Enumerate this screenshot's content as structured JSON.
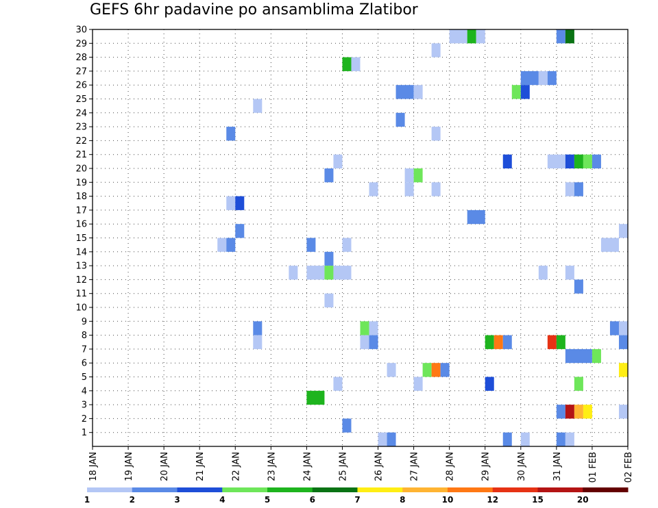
{
  "chart_data": {
    "type": "heatmap",
    "title": "GEFS 6hr padavine po ansamblima Zlatibor",
    "y_ticks": [
      "1",
      "2",
      "3",
      "4",
      "5",
      "6",
      "7",
      "8",
      "9",
      "10",
      "11",
      "12",
      "13",
      "14",
      "15",
      "16",
      "17",
      "18",
      "19",
      "20",
      "21",
      "22",
      "23",
      "24",
      "25",
      "26",
      "27",
      "28",
      "29",
      "30"
    ],
    "x_ticks": [
      "18 JAN",
      "19 JAN",
      "20 JAN",
      "21 JAN",
      "22 JAN",
      "23 JAN",
      "24 JAN",
      "25 JAN",
      "26 JAN",
      "27 JAN",
      "28 JAN",
      "29 JAN",
      "30 JAN",
      "31 JAN",
      "01 FEB",
      "02 FEB"
    ],
    "x_range": [
      "18 JAN 00Z",
      "02 FEB 00Z"
    ],
    "time_step_hours": 6,
    "y_range": [
      0,
      30
    ],
    "grid": "dotted",
    "legend": {
      "placement": "bottom",
      "labels": [
        "1",
        "2",
        "3",
        "4",
        "5",
        "6",
        "7",
        "8",
        "10",
        "12",
        "15",
        "20"
      ],
      "colors": [
        "#b4c7f5",
        "#5a8ae6",
        "#1e4ed8",
        "#6ee65a",
        "#1eb41e",
        "#0a7314",
        "#ffee14",
        "#ffb432",
        "#ff7814",
        "#e63214",
        "#b41414",
        "#640000"
      ]
    },
    "cells": [
      {
        "member": 30,
        "start": "28 JAN 00Z",
        "end": "28 JAN 12Z",
        "value": 1
      },
      {
        "member": 30,
        "start": "28 JAN 12Z",
        "end": "28 JAN 18Z",
        "value": 5
      },
      {
        "member": 30,
        "start": "28 JAN 18Z",
        "end": "29 JAN 00Z",
        "value": 1
      },
      {
        "member": 30,
        "start": "31 JAN 00Z",
        "end": "31 JAN 06Z",
        "value": 2
      },
      {
        "member": 30,
        "start": "31 JAN 06Z",
        "end": "31 JAN 12Z",
        "value": 6
      },
      {
        "member": 29,
        "start": "27 JAN 12Z",
        "end": "27 JAN 18Z",
        "value": 1
      },
      {
        "member": 28,
        "start": "25 JAN 00Z",
        "end": "25 JAN 06Z",
        "value": 5
      },
      {
        "member": 28,
        "start": "25 JAN 06Z",
        "end": "25 JAN 12Z",
        "value": 1
      },
      {
        "member": 27,
        "start": "30 JAN 00Z",
        "end": "30 JAN 12Z",
        "value": 2
      },
      {
        "member": 27,
        "start": "30 JAN 12Z",
        "end": "30 JAN 18Z",
        "value": 1
      },
      {
        "member": 27,
        "start": "30 JAN 18Z",
        "end": "31 JAN 00Z",
        "value": 2
      },
      {
        "member": 26,
        "start": "26 JAN 12Z",
        "end": "27 JAN 00Z",
        "value": 2
      },
      {
        "member": 26,
        "start": "27 JAN 00Z",
        "end": "27 JAN 06Z",
        "value": 1
      },
      {
        "member": 26,
        "start": "29 JAN 18Z",
        "end": "30 JAN 00Z",
        "value": 4
      },
      {
        "member": 26,
        "start": "30 JAN 00Z",
        "end": "30 JAN 06Z",
        "value": 3
      },
      {
        "member": 25,
        "start": "22 JAN 12Z",
        "end": "22 JAN 18Z",
        "value": 1
      },
      {
        "member": 24,
        "start": "26 JAN 12Z",
        "end": "26 JAN 18Z",
        "value": 2
      },
      {
        "member": 23,
        "start": "21 JAN 18Z",
        "end": "22 JAN 00Z",
        "value": 2
      },
      {
        "member": 23,
        "start": "27 JAN 12Z",
        "end": "27 JAN 18Z",
        "value": 1
      },
      {
        "member": 21,
        "start": "24 JAN 18Z",
        "end": "25 JAN 00Z",
        "value": 1
      },
      {
        "member": 21,
        "start": "29 JAN 12Z",
        "end": "29 JAN 18Z",
        "value": 3
      },
      {
        "member": 21,
        "start": "30 JAN 18Z",
        "end": "31 JAN 06Z",
        "value": 1
      },
      {
        "member": 21,
        "start": "31 JAN 06Z",
        "end": "31 JAN 12Z",
        "value": 3
      },
      {
        "member": 21,
        "start": "31 JAN 12Z",
        "end": "31 JAN 18Z",
        "value": 5
      },
      {
        "member": 21,
        "start": "31 JAN 18Z",
        "end": "01 FEB 00Z",
        "value": 4
      },
      {
        "member": 21,
        "start": "01 FEB 00Z",
        "end": "01 FEB 06Z",
        "value": 2
      },
      {
        "member": 20,
        "start": "24 JAN 12Z",
        "end": "24 JAN 18Z",
        "value": 2
      },
      {
        "member": 20,
        "start": "26 JAN 18Z",
        "end": "27 JAN 00Z",
        "value": 1
      },
      {
        "member": 20,
        "start": "27 JAN 00Z",
        "end": "27 JAN 06Z",
        "value": 4
      },
      {
        "member": 19,
        "start": "25 JAN 18Z",
        "end": "26 JAN 00Z",
        "value": 1
      },
      {
        "member": 19,
        "start": "26 JAN 18Z",
        "end": "27 JAN 00Z",
        "value": 1
      },
      {
        "member": 19,
        "start": "27 JAN 12Z",
        "end": "27 JAN 18Z",
        "value": 1
      },
      {
        "member": 19,
        "start": "31 JAN 06Z",
        "end": "31 JAN 12Z",
        "value": 1
      },
      {
        "member": 19,
        "start": "31 JAN 12Z",
        "end": "31 JAN 18Z",
        "value": 2
      },
      {
        "member": 18,
        "start": "21 JAN 18Z",
        "end": "22 JAN 00Z",
        "value": 1
      },
      {
        "member": 18,
        "start": "22 JAN 00Z",
        "end": "22 JAN 06Z",
        "value": 3
      },
      {
        "member": 17,
        "start": "28 JAN 12Z",
        "end": "29 JAN 00Z",
        "value": 2
      },
      {
        "member": 16,
        "start": "01 FEB 18Z",
        "end": "02 FEB 00Z",
        "value": 1
      },
      {
        "member": 16,
        "start": "22 JAN 00Z",
        "end": "22 JAN 06Z",
        "value": 2
      },
      {
        "member": 15,
        "start": "21 JAN 12Z",
        "end": "21 JAN 18Z",
        "value": 1
      },
      {
        "member": 15,
        "start": "21 JAN 18Z",
        "end": "22 JAN 00Z",
        "value": 2
      },
      {
        "member": 15,
        "start": "24 JAN 00Z",
        "end": "24 JAN 06Z",
        "value": 2
      },
      {
        "member": 15,
        "start": "25 JAN 00Z",
        "end": "25 JAN 06Z",
        "value": 1
      },
      {
        "member": 15,
        "start": "01 FEB 06Z",
        "end": "01 FEB 18Z",
        "value": 1
      },
      {
        "member": 14,
        "start": "24 JAN 12Z",
        "end": "24 JAN 18Z",
        "value": 2
      },
      {
        "member": 13,
        "start": "23 JAN 12Z",
        "end": "23 JAN 18Z",
        "value": 1
      },
      {
        "member": 13,
        "start": "24 JAN 00Z",
        "end": "24 JAN 12Z",
        "value": 1
      },
      {
        "member": 13,
        "start": "24 JAN 12Z",
        "end": "24 JAN 18Z",
        "value": 4
      },
      {
        "member": 13,
        "start": "24 JAN 18Z",
        "end": "25 JAN 06Z",
        "value": 1
      },
      {
        "member": 13,
        "start": "30 JAN 12Z",
        "end": "30 JAN 18Z",
        "value": 1
      },
      {
        "member": 13,
        "start": "31 JAN 06Z",
        "end": "31 JAN 12Z",
        "value": 1
      },
      {
        "member": 12,
        "start": "31 JAN 12Z",
        "end": "31 JAN 18Z",
        "value": 2
      },
      {
        "member": 11,
        "start": "24 JAN 12Z",
        "end": "24 JAN 18Z",
        "value": 1
      },
      {
        "member": 9,
        "start": "22 JAN 12Z",
        "end": "22 JAN 18Z",
        "value": 2
      },
      {
        "member": 9,
        "start": "25 JAN 12Z",
        "end": "25 JAN 18Z",
        "value": 4
      },
      {
        "member": 9,
        "start": "25 JAN 18Z",
        "end": "26 JAN 00Z",
        "value": 1
      },
      {
        "member": 9,
        "start": "01 FEB 12Z",
        "end": "01 FEB 18Z",
        "value": 2
      },
      {
        "member": 9,
        "start": "01 FEB 18Z",
        "end": "02 FEB 00Z",
        "value": 1
      },
      {
        "member": 8,
        "start": "22 JAN 12Z",
        "end": "22 JAN 18Z",
        "value": 1
      },
      {
        "member": 8,
        "start": "25 JAN 12Z",
        "end": "25 JAN 18Z",
        "value": 1
      },
      {
        "member": 8,
        "start": "25 JAN 18Z",
        "end": "26 JAN 00Z",
        "value": 2
      },
      {
        "member": 8,
        "start": "29 JAN 00Z",
        "end": "29 JAN 06Z",
        "value": 5
      },
      {
        "member": 8,
        "start": "29 JAN 06Z",
        "end": "29 JAN 12Z",
        "value": 10
      },
      {
        "member": 8,
        "start": "29 JAN 12Z",
        "end": "29 JAN 18Z",
        "value": 2
      },
      {
        "member": 8,
        "start": "30 JAN 18Z",
        "end": "31 JAN 00Z",
        "value": 12
      },
      {
        "member": 8,
        "start": "31 JAN 00Z",
        "end": "31 JAN 06Z",
        "value": 5
      },
      {
        "member": 8,
        "start": "01 FEB 18Z",
        "end": "02 FEB 00Z",
        "value": 2
      },
      {
        "member": 7,
        "start": "31 JAN 06Z",
        "end": "01 FEB 00Z",
        "value": 2
      },
      {
        "member": 7,
        "start": "01 FEB 00Z",
        "end": "01 FEB 06Z",
        "value": 4
      },
      {
        "member": 6,
        "start": "26 JAN 06Z",
        "end": "26 JAN 12Z",
        "value": 1
      },
      {
        "member": 6,
        "start": "27 JAN 06Z",
        "end": "27 JAN 12Z",
        "value": 4
      },
      {
        "member": 6,
        "start": "27 JAN 12Z",
        "end": "27 JAN 18Z",
        "value": 10
      },
      {
        "member": 6,
        "start": "27 JAN 18Z",
        "end": "28 JAN 00Z",
        "value": 2
      },
      {
        "member": 6,
        "start": "01 FEB 18Z",
        "end": "02 FEB 00Z",
        "value": 7
      },
      {
        "member": 5,
        "start": "24 JAN 18Z",
        "end": "25 JAN 00Z",
        "value": 1
      },
      {
        "member": 5,
        "start": "27 JAN 00Z",
        "end": "27 JAN 06Z",
        "value": 1
      },
      {
        "member": 5,
        "start": "29 JAN 00Z",
        "end": "29 JAN 06Z",
        "value": 3
      },
      {
        "member": 5,
        "start": "31 JAN 12Z",
        "end": "31 JAN 18Z",
        "value": 4
      },
      {
        "member": 4,
        "start": "24 JAN 00Z",
        "end": "24 JAN 12Z",
        "value": 5
      },
      {
        "member": 3,
        "start": "31 JAN 00Z",
        "end": "31 JAN 06Z",
        "value": 2
      },
      {
        "member": 3,
        "start": "31 JAN 06Z",
        "end": "31 JAN 12Z",
        "value": 15
      },
      {
        "member": 3,
        "start": "31 JAN 12Z",
        "end": "31 JAN 18Z",
        "value": 8
      },
      {
        "member": 3,
        "start": "31 JAN 18Z",
        "end": "01 FEB 00Z",
        "value": 7
      },
      {
        "member": 3,
        "start": "01 FEB 18Z",
        "end": "02 FEB 00Z",
        "value": 1
      },
      {
        "member": 2,
        "start": "25 JAN 00Z",
        "end": "25 JAN 06Z",
        "value": 2
      },
      {
        "member": 1,
        "start": "26 JAN 00Z",
        "end": "26 JAN 06Z",
        "value": 1
      },
      {
        "member": 1,
        "start": "26 JAN 06Z",
        "end": "26 JAN 12Z",
        "value": 2
      },
      {
        "member": 1,
        "start": "29 JAN 12Z",
        "end": "29 JAN 18Z",
        "value": 2
      },
      {
        "member": 1,
        "start": "30 JAN 00Z",
        "end": "30 JAN 06Z",
        "value": 1
      },
      {
        "member": 1,
        "start": "31 JAN 00Z",
        "end": "31 JAN 06Z",
        "value": 2
      },
      {
        "member": 1,
        "start": "31 JAN 06Z",
        "end": "31 JAN 12Z",
        "value": 1
      }
    ]
  }
}
